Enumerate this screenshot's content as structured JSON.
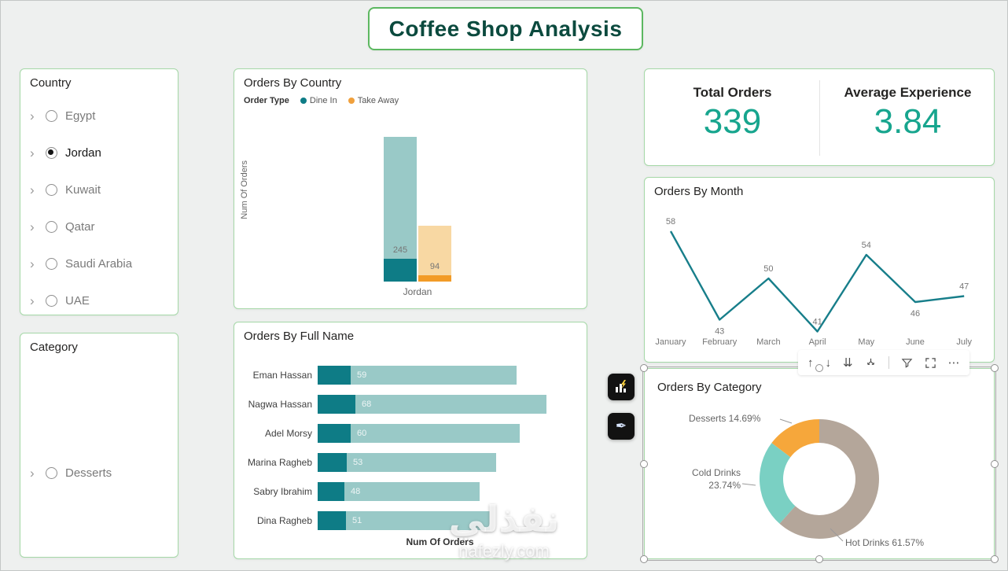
{
  "page": {
    "title": "Coffee Shop Analysis"
  },
  "watermark": {
    "arabic": "نفذلي",
    "site": "nafezly.com"
  },
  "colors": {
    "accent_teal": "#0E7C86",
    "teal_light": "#99C9C7",
    "kpi_teal": "#17A58E",
    "orange_dark": "#F29B27",
    "orange": "#F0A03C",
    "orange_light": "#F8D8A3",
    "line_teal": "#177E8A",
    "donut_hot_drinks": "#B4A69A",
    "donut_cold_drinks": "#7AD0C3",
    "donut_desserts": "#F6A73B",
    "card_border": "#A5D8A7",
    "title_border": "#5CB860",
    "title_text": "#0B4A3E"
  },
  "country_slicer": {
    "title": "Country",
    "items": [
      {
        "label": "Egypt",
        "selected": false
      },
      {
        "label": "Jordan",
        "selected": true
      },
      {
        "label": "Kuwait",
        "selected": false
      },
      {
        "label": "Qatar",
        "selected": false
      },
      {
        "label": "Saudi Arabia",
        "selected": false
      },
      {
        "label": "UAE",
        "selected": false
      }
    ]
  },
  "category_slicer": {
    "title": "Category",
    "items": [
      {
        "label": "Desserts",
        "selected": false
      }
    ]
  },
  "kpi": {
    "total_orders_label": "Total Orders",
    "total_orders_value": "339",
    "avg_experience_label": "Average Experience",
    "avg_experience_value": "3.84"
  },
  "visual_toolbar": {
    "icons": [
      "drill-up",
      "drill-down",
      "go-to-next-level",
      "expand-all",
      "filter",
      "focus-mode",
      "more-options"
    ]
  },
  "side_buttons": [
    {
      "name": "insights-button",
      "icon": "chart-lightning-icon"
    },
    {
      "name": "pen-button",
      "icon": "quill-icon"
    }
  ],
  "chart_data": [
    {
      "id": "orders_by_country",
      "type": "bar",
      "title": "Orders By Country",
      "legend_title": "Order Type",
      "legend_position": "top",
      "categories": [
        "Jordan"
      ],
      "series": [
        {
          "name": "Dine In",
          "value": 245,
          "highlight_fraction": 0.16
        },
        {
          "name": "Take Away",
          "value": 94,
          "highlight_fraction": 0.11
        }
      ],
      "ylabel": "Num Of Orders",
      "ylim": [
        0,
        260
      ]
    },
    {
      "id": "orders_by_full_name",
      "type": "bar",
      "orientation": "horizontal",
      "title": "Orders By Full Name",
      "categories": [
        "Eman Hassan",
        "Nagwa Hassan",
        "Adel Morsy",
        "Marina Ragheb",
        "Sabry Ibrahim",
        "Dina Ragheb"
      ],
      "values": [
        59,
        68,
        60,
        53,
        48,
        51
      ],
      "xlabel": "Num Of Orders",
      "xlim": [
        0,
        70
      ],
      "highlight_fraction": 0.165
    },
    {
      "id": "orders_by_month",
      "type": "line",
      "title": "Orders By Month",
      "categories": [
        "January",
        "February",
        "March",
        "April",
        "May",
        "June",
        "July"
      ],
      "values": [
        58,
        43,
        50,
        41,
        54,
        46,
        47
      ],
      "ylim": [
        38,
        62
      ],
      "grid": false
    },
    {
      "id": "orders_by_category",
      "type": "donut",
      "title": "Orders By Category",
      "slices": [
        {
          "name": "Hot Drinks",
          "pct": 61.57,
          "pct_label": "61.57%"
        },
        {
          "name": "Cold Drinks",
          "pct": 23.74,
          "pct_label": "23.74%"
        },
        {
          "name": "Desserts",
          "pct": 14.69,
          "pct_label": "14.69%"
        }
      ]
    }
  ]
}
